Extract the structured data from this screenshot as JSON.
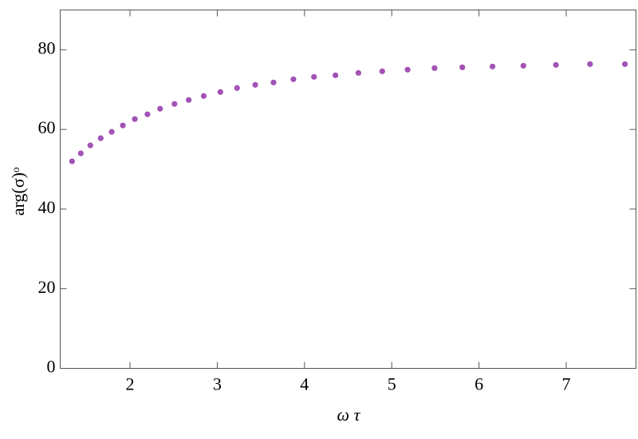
{
  "chart_data": {
    "type": "scatter",
    "x_label": "ω τ",
    "y_label": "arg(σ)ᵒ",
    "xlim": [
      1.2,
      7.8
    ],
    "ylim": [
      0,
      90
    ],
    "xticks": [
      2,
      3,
      4,
      5,
      6,
      7
    ],
    "yticks": [
      0,
      20,
      40,
      60,
      80
    ],
    "color": "#a352b5",
    "x": [
      1.336,
      1.436,
      1.545,
      1.664,
      1.79,
      1.918,
      2.055,
      2.2,
      2.345,
      2.51,
      2.673,
      2.845,
      3.036,
      3.227,
      3.436,
      3.645,
      3.873,
      4.109,
      4.355,
      4.618,
      4.891,
      5.182,
      5.491,
      5.809,
      6.155,
      6.509,
      6.882,
      7.273,
      7.673
    ],
    "values": [
      52.0,
      54.0,
      56.0,
      57.8,
      59.4,
      61.0,
      62.6,
      63.8,
      65.2,
      66.4,
      67.4,
      68.4,
      69.4,
      70.4,
      71.2,
      71.8,
      72.6,
      73.2,
      73.6,
      74.2,
      74.6,
      75.0,
      75.4,
      75.6,
      75.8,
      76.0,
      76.2,
      76.4,
      76.4
    ]
  }
}
